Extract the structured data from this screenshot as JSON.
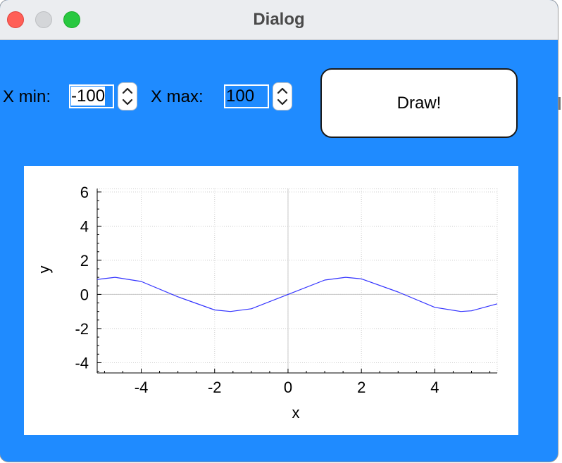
{
  "window": {
    "title": "Dialog"
  },
  "controls": {
    "xmin_label": "X min:",
    "xmin_value": "-100",
    "xmax_label": "X max:",
    "xmax_value": "100",
    "draw_label": "Draw!"
  },
  "chart_data": {
    "type": "line",
    "title": "",
    "xlabel": "x",
    "ylabel": "y",
    "xlim": [
      -5.2,
      5.7
    ],
    "ylim": [
      -4.6,
      6.2
    ],
    "xticks": [
      -4,
      -2,
      0,
      2,
      4
    ],
    "xtick_labels": [
      "-4",
      "-2",
      "0",
      "2",
      "4"
    ],
    "yticks": [
      -4,
      -2,
      0,
      2,
      4,
      6
    ],
    "ytick_labels": [
      "-4",
      "-2",
      "0",
      "2",
      "4",
      "6"
    ],
    "grid": true,
    "series": [
      {
        "color": "#3333ff",
        "x": [
          -5.2,
          -4.71,
          -4.0,
          -3.0,
          -2.0,
          -1.57,
          -1.0,
          0.0,
          1.0,
          1.57,
          2.0,
          3.0,
          4.0,
          4.71,
          5.0,
          5.7
        ],
        "y": [
          0.88,
          1.0,
          0.76,
          -0.14,
          -0.91,
          -1.0,
          -0.84,
          0.0,
          0.84,
          1.0,
          0.91,
          0.14,
          -0.76,
          -1.0,
          -0.96,
          -0.55
        ]
      }
    ]
  }
}
